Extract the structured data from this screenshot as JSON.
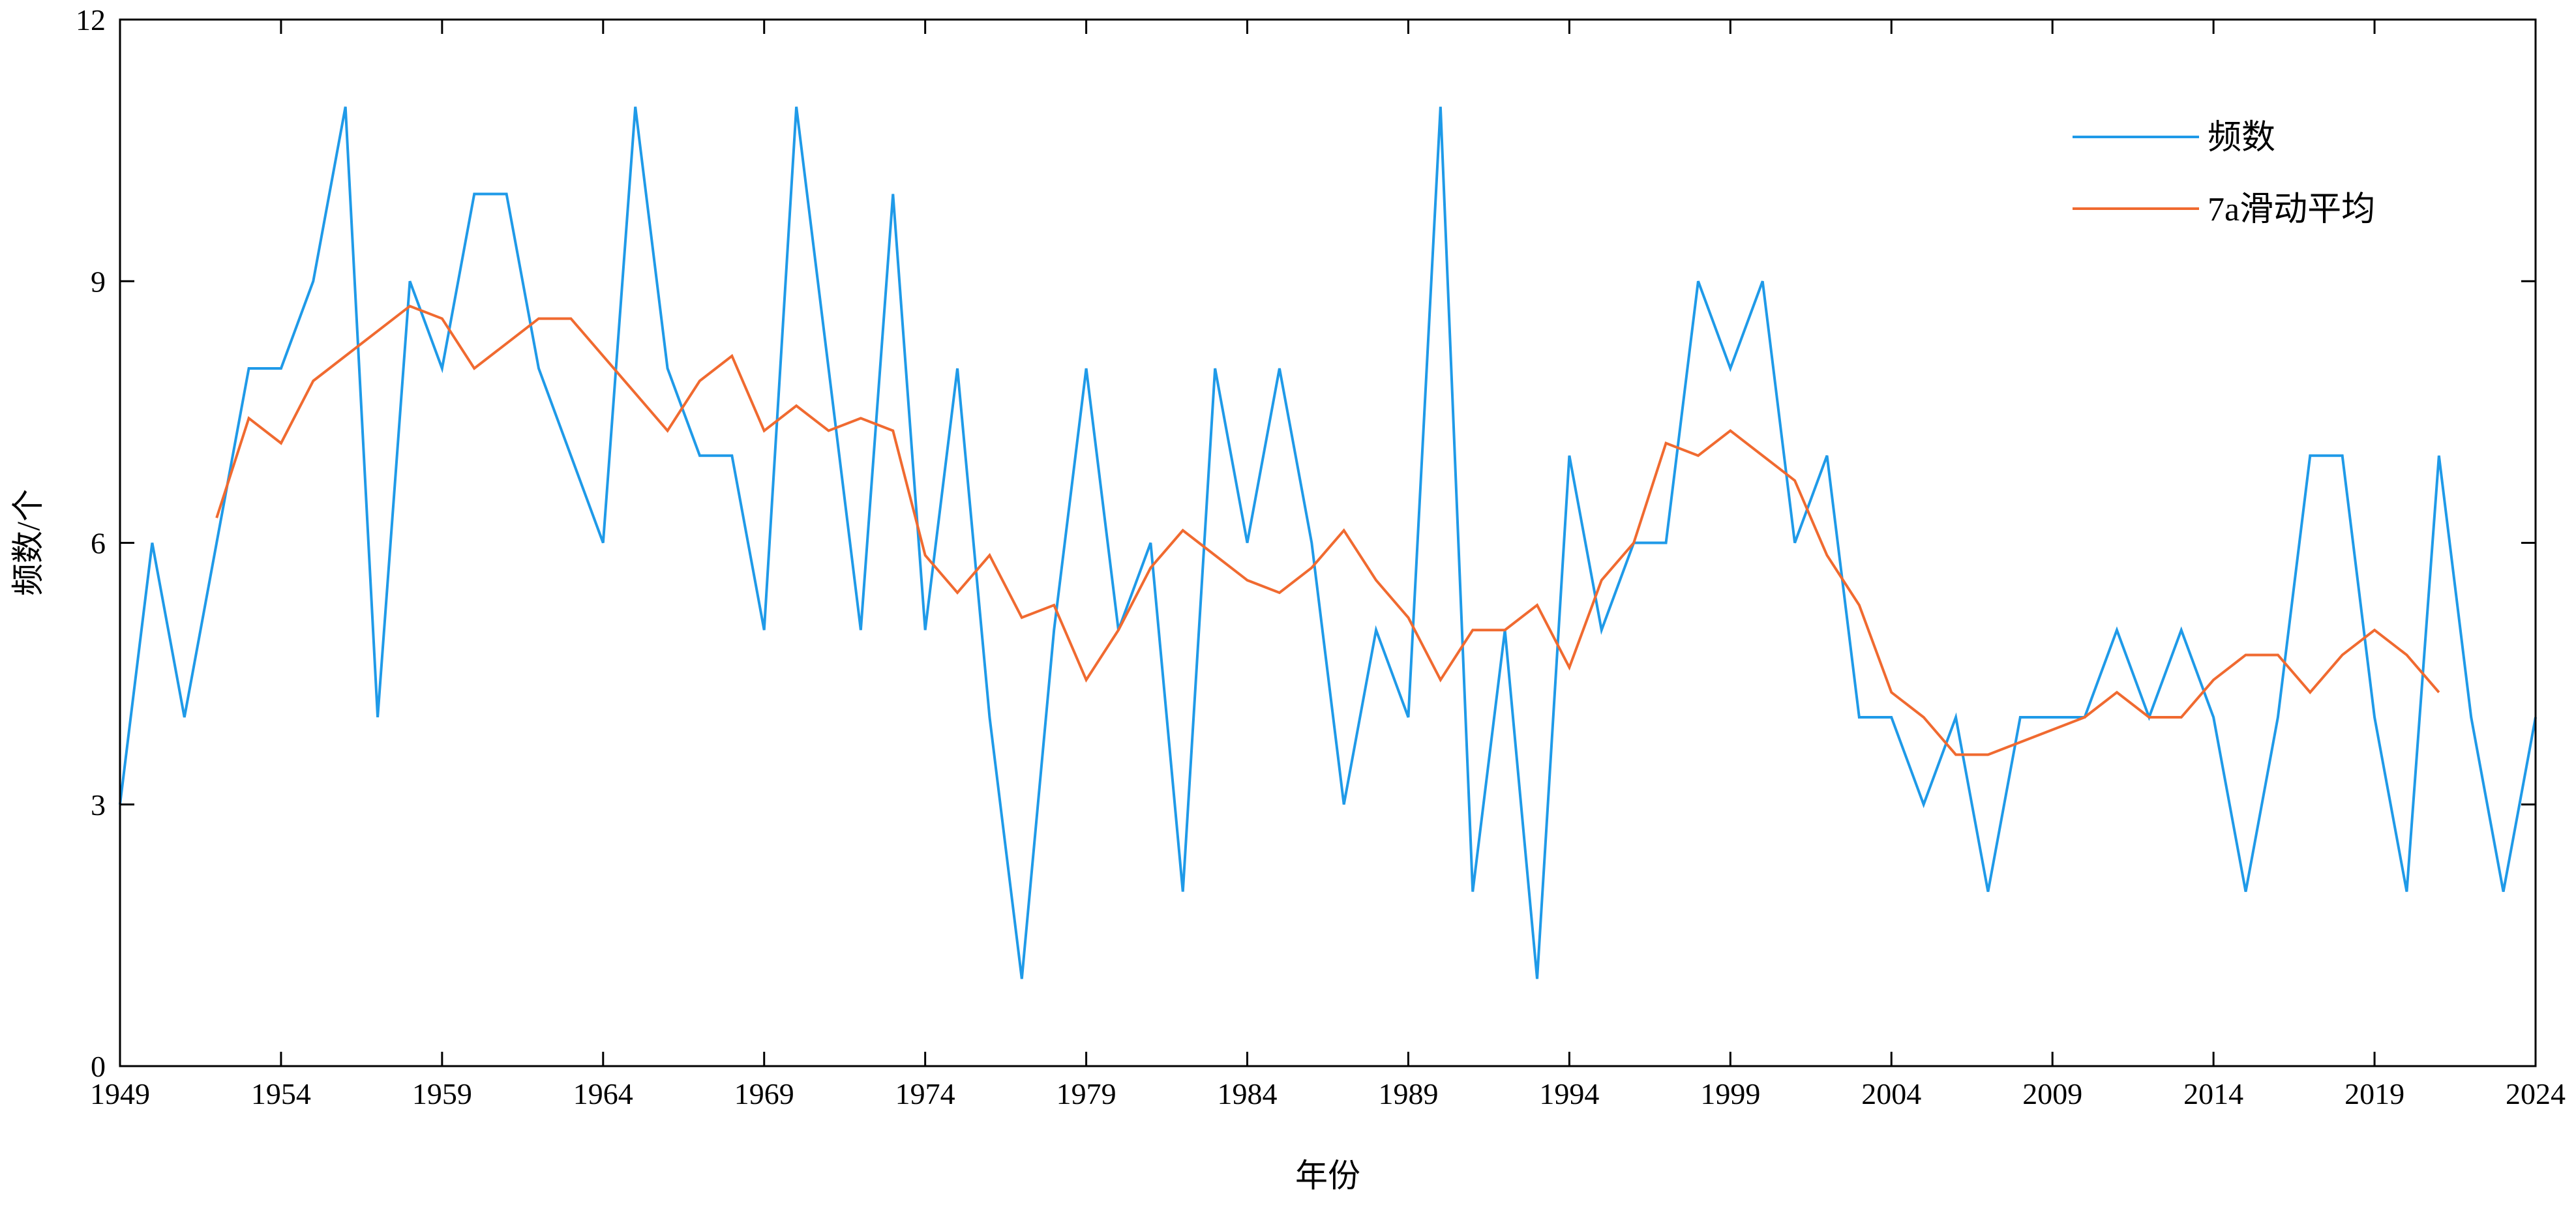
{
  "chart_data": {
    "type": "line",
    "title": "",
    "xlabel": "年份",
    "ylabel": "频数/个",
    "xlim": [
      1949,
      2024
    ],
    "ylim": [
      0,
      12
    ],
    "xticks": [
      "1949",
      "1954",
      "1959",
      "1964",
      "1969",
      "1974",
      "1979",
      "1984",
      "1989",
      "1994",
      "1999",
      "2004",
      "2009",
      "2014",
      "2019",
      "2024"
    ],
    "yticks": [
      "0",
      "3",
      "6",
      "9",
      "12"
    ],
    "grid": false,
    "legend_position": "top-right",
    "ma_window": 7,
    "x_start": 1949,
    "series": [
      {
        "name": "频数",
        "color": "#1f9ae8",
        "values": [
          3,
          6,
          4,
          6,
          8,
          8,
          9,
          11,
          4,
          9,
          8,
          10,
          10,
          8,
          7,
          6,
          11,
          8,
          7,
          7,
          5,
          11,
          8,
          5,
          10,
          5,
          8,
          4,
          1,
          5,
          8,
          5,
          6,
          2,
          8,
          6,
          8,
          6,
          3,
          5,
          4,
          11,
          2,
          5,
          1,
          7,
          5,
          6,
          6,
          9,
          8,
          9,
          6,
          7,
          4,
          4,
          3,
          4,
          2,
          4,
          4,
          4,
          5,
          4,
          5,
          4,
          2,
          4,
          7,
          7,
          4,
          2,
          7,
          4,
          2,
          4
        ]
      },
      {
        "name": "7a滑动平均",
        "color": "#f06a30",
        "computed_from": "频数"
      }
    ]
  }
}
